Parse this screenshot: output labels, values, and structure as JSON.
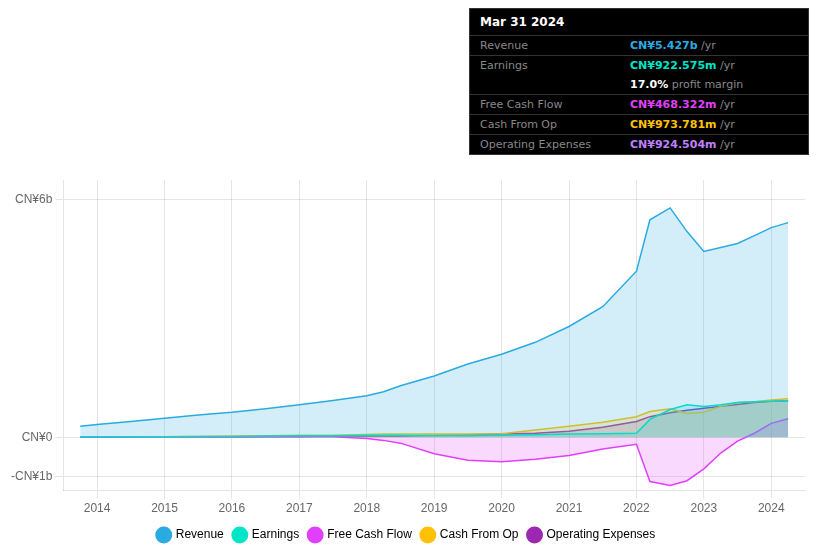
{
  "chart_data": {
    "type": "area",
    "x": [
      2013.75,
      2014,
      2014.5,
      2015,
      2015.5,
      2016,
      2016.5,
      2017,
      2017.5,
      2018,
      2018.25,
      2018.5,
      2019,
      2019.5,
      2020,
      2020.5,
      2021,
      2021.5,
      2022,
      2022.2,
      2022.5,
      2022.75,
      2023,
      2023.25,
      2023.5,
      2023.75,
      2024,
      2024.25
    ],
    "xlim": [
      2013.5,
      2024.5
    ],
    "xticks": [
      2014,
      2015,
      2016,
      2017,
      2018,
      2019,
      2020,
      2021,
      2022,
      2023,
      2024
    ],
    "ylim": [
      -1.35,
      6.5
    ],
    "yticks": [
      {
        "value": -1,
        "label": "-CN¥1b"
      },
      {
        "value": 0,
        "label": "CN¥0"
      },
      {
        "value": 6,
        "label": "CN¥6b"
      }
    ],
    "grid": true,
    "legend": "bottom",
    "series": [
      {
        "name": "Revenue",
        "color": "#29abe2",
        "values": [
          0.28,
          0.32,
          0.4,
          0.48,
          0.56,
          0.63,
          0.72,
          0.82,
          0.93,
          1.05,
          1.15,
          1.3,
          1.55,
          1.85,
          2.1,
          2.4,
          2.8,
          3.3,
          4.2,
          5.5,
          5.8,
          5.2,
          4.7,
          4.8,
          4.9,
          5.1,
          5.3,
          5.427
        ]
      },
      {
        "name": "Earnings",
        "color": "#00e5c8",
        "values": [
          0.01,
          0.01,
          0.01,
          0.015,
          0.02,
          0.02,
          0.03,
          0.04,
          0.04,
          0.05,
          0.05,
          0.05,
          0.04,
          0.04,
          0.05,
          0.06,
          0.08,
          0.09,
          0.1,
          0.45,
          0.7,
          0.82,
          0.78,
          0.82,
          0.88,
          0.9,
          0.91,
          0.9226
        ]
      },
      {
        "name": "Free Cash Flow",
        "color": "#e040fb",
        "values": [
          0.0,
          0.0,
          0.005,
          0.01,
          0.01,
          0.01,
          0.01,
          0.01,
          0.01,
          -0.03,
          -0.08,
          -0.15,
          -0.42,
          -0.58,
          -0.62,
          -0.56,
          -0.46,
          -0.3,
          -0.18,
          -1.12,
          -1.22,
          -1.1,
          -0.8,
          -0.4,
          -0.1,
          0.1,
          0.35,
          0.4683
        ]
      },
      {
        "name": "Cash From Op",
        "color": "#ffc107",
        "values": [
          0.005,
          0.01,
          0.01,
          0.015,
          0.02,
          0.03,
          0.04,
          0.05,
          0.05,
          0.07,
          0.08,
          0.08,
          0.08,
          0.08,
          0.09,
          0.18,
          0.28,
          0.38,
          0.52,
          0.65,
          0.72,
          0.6,
          0.63,
          0.78,
          0.88,
          0.9,
          0.94,
          0.9738
        ]
      },
      {
        "name": "Operating Expenses",
        "color": "#9c27b0",
        "values": [
          0.0,
          0.005,
          0.01,
          0.01,
          0.01,
          0.015,
          0.02,
          0.02,
          0.03,
          0.03,
          0.03,
          0.03,
          0.05,
          0.06,
          0.08,
          0.1,
          0.15,
          0.25,
          0.4,
          0.52,
          0.62,
          0.68,
          0.73,
          0.78,
          0.83,
          0.88,
          0.91,
          0.9245
        ]
      }
    ],
    "annotations": [
      {
        "text": "Mar 31 2024"
      },
      {
        "label": "Revenue",
        "text": "CN¥5.427b",
        "suffix": " /yr",
        "color": "#29abe2"
      },
      {
        "label": "Earnings",
        "text": "CN¥922.575m",
        "suffix": " /yr",
        "color": "#00e5c8"
      },
      {
        "text": "17.0%",
        "suffix": " profit margin",
        "color": "#ffffff"
      },
      {
        "label": "Free Cash Flow",
        "text": "CN¥468.322m",
        "suffix": " /yr",
        "color": "#e040fb"
      },
      {
        "label": "Cash From Op",
        "text": "CN¥973.781m",
        "suffix": " /yr",
        "color": "#ffc107"
      },
      {
        "label": "Operating Expenses",
        "text": "CN¥924.504m",
        "suffix": " /yr",
        "color": "#bf80ff"
      }
    ]
  }
}
